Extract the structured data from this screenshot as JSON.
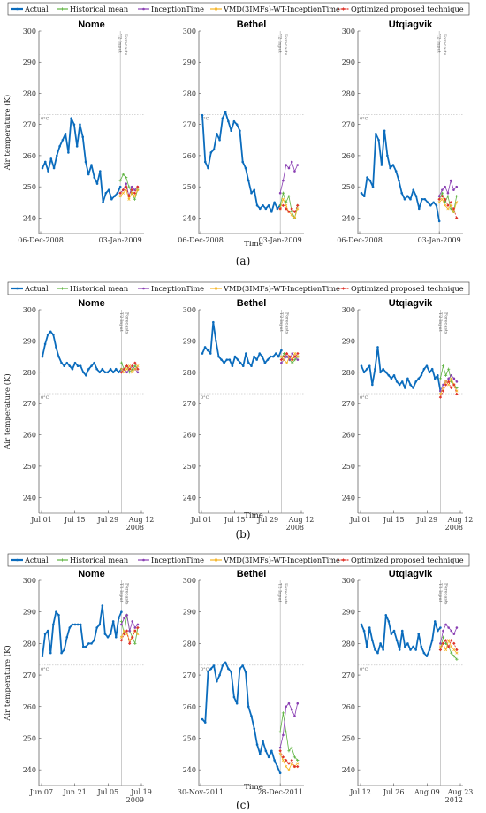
{
  "figure": {
    "ylabel": "Air temperature (K)",
    "xlabel": "Time",
    "freeze_label": "0°C",
    "split_input": "T2 Input",
    "split_forecast": "Forecasts",
    "legend": [
      "Actual",
      "Historical mean",
      "InceptionTime",
      "VMD(3IMFs)-WT-InceptionTime",
      "Optimized proposed technique"
    ],
    "colors": {
      "Actual": "#0b6cbd",
      "Historical mean": "#5db33f",
      "InceptionTime": "#8a3fb3",
      "VMD": "#f5b323",
      "Optimized": "#e0342b"
    }
  },
  "chart_data": [
    {
      "caption": "(a)",
      "type": "line",
      "ylim": [
        235,
        300
      ],
      "yticks": [
        240,
        250,
        260,
        270,
        280,
        290,
        300
      ],
      "xticks_text": [
        "06-Dec-2008",
        "03-Jan-2009"
      ],
      "panels": [
        {
          "title": "Nome",
          "actual": [
            256,
            258,
            255,
            259,
            256,
            260,
            263,
            265,
            267,
            261,
            272,
            270,
            263,
            270,
            266,
            258,
            254,
            257,
            253,
            251,
            255,
            245,
            248,
            249,
            246,
            247,
            248,
            250
          ],
          "hist": [
            252,
            254,
            253,
            250,
            248,
            246,
            249
          ],
          "incep": [
            248,
            249,
            251,
            247,
            250,
            249,
            250
          ],
          "vmd": [
            247,
            248,
            249,
            246,
            248,
            247,
            249
          ],
          "opt": [
            248,
            249,
            250,
            247,
            249,
            248,
            250
          ]
        },
        {
          "title": "Bethel",
          "actual": [
            273,
            258,
            256,
            261,
            262,
            267,
            265,
            272,
            274,
            271,
            268,
            271,
            270,
            268,
            258,
            256,
            252,
            248,
            249,
            244,
            243,
            244,
            243,
            244,
            242,
            245,
            243,
            244
          ],
          "hist": [
            244,
            248,
            245,
            247,
            242,
            240,
            244
          ],
          "incep": [
            248,
            252,
            257,
            256,
            258,
            255,
            257
          ],
          "vmd": [
            243,
            246,
            244,
            242,
            241,
            240,
            243
          ],
          "opt": [
            243,
            244,
            243,
            242,
            243,
            242,
            244
          ]
        },
        {
          "title": "Utqiagvik",
          "actual": [
            248,
            247,
            253,
            252,
            250,
            267,
            265,
            257,
            268,
            260,
            256,
            257,
            255,
            252,
            248,
            246,
            247,
            246,
            249,
            247,
            243,
            246,
            246,
            245,
            244,
            245,
            244,
            239
          ],
          "hist": [
            246,
            248,
            245,
            247,
            243,
            242,
            247
          ],
          "incep": [
            247,
            249,
            250,
            248,
            252,
            249,
            250
          ],
          "vmd": [
            245,
            246,
            244,
            243,
            244,
            242,
            245
          ],
          "opt": [
            246,
            247,
            246,
            244,
            245,
            243,
            240
          ]
        }
      ]
    },
    {
      "caption": "(b)",
      "type": "line",
      "ylim": [
        235,
        300
      ],
      "yticks": [
        240,
        250,
        260,
        270,
        280,
        290,
        300
      ],
      "xticks_text": [
        "Jul 01",
        "Jul 15",
        "Jul 29",
        "Aug 12"
      ],
      "xyear": "2008",
      "panels": [
        {
          "title": "Nome",
          "actual": [
            285,
            289,
            292,
            293,
            292,
            288,
            285,
            283,
            282,
            283,
            282,
            281,
            283,
            282,
            282,
            280,
            279,
            281,
            282,
            283,
            281,
            280,
            281,
            280,
            280,
            281,
            280,
            281,
            280,
            281
          ],
          "hist": [
            283,
            281,
            282,
            280,
            281,
            282,
            281
          ],
          "incep": [
            280,
            281,
            280,
            281,
            282,
            281,
            280
          ],
          "vmd": [
            281,
            280,
            281,
            282,
            280,
            281,
            282
          ],
          "opt": [
            280,
            281,
            282,
            281,
            282,
            283,
            281
          ]
        },
        {
          "title": "Bethel",
          "actual": [
            286,
            288,
            287,
            286,
            296,
            290,
            285,
            284,
            283,
            284,
            284,
            282,
            285,
            284,
            283,
            282,
            286,
            283,
            282,
            285,
            284,
            286,
            285,
            283,
            284,
            285,
            285,
            286,
            285,
            287
          ],
          "hist": [
            284,
            286,
            285,
            284,
            283,
            284,
            285
          ],
          "incep": [
            283,
            284,
            285,
            284,
            286,
            285,
            284
          ],
          "vmd": [
            285,
            284,
            283,
            285,
            284,
            286,
            285
          ],
          "opt": [
            284,
            285,
            286,
            285,
            284,
            285,
            286
          ]
        },
        {
          "title": "Utqiagvik",
          "actual": [
            282,
            280,
            281,
            282,
            276,
            281,
            288,
            280,
            281,
            280,
            279,
            278,
            279,
            277,
            276,
            277,
            275,
            278,
            276,
            275,
            277,
            278,
            279,
            281,
            282,
            280,
            281,
            278,
            279,
            274
          ],
          "hist": [
            278,
            282,
            279,
            281,
            277,
            276,
            275
          ],
          "incep": [
            274,
            276,
            277,
            278,
            279,
            278,
            277
          ],
          "vmd": [
            273,
            275,
            277,
            276,
            278,
            276,
            274
          ],
          "opt": [
            272,
            274,
            276,
            277,
            275,
            276,
            273
          ]
        }
      ]
    },
    {
      "caption": "(c)",
      "type": "line",
      "ylim": [
        235,
        300
      ],
      "yticks": [
        240,
        250,
        260,
        270,
        280,
        290,
        300
      ],
      "panels": [
        {
          "title": "Nome",
          "xticks_text": [
            "Jun 07",
            "Jun 21",
            "Jul 05",
            "Jul 19"
          ],
          "xyear": "2009",
          "actual": [
            276,
            283,
            284,
            277,
            286,
            290,
            289,
            277,
            278,
            282,
            285,
            286,
            286,
            286,
            286,
            279,
            279,
            280,
            280,
            281,
            285,
            286,
            292,
            283,
            282,
            283,
            287,
            282,
            288,
            290
          ],
          "hist": [
            287,
            283,
            289,
            284,
            282,
            280,
            285
          ],
          "incep": [
            286,
            288,
            289,
            284,
            287,
            285,
            286
          ],
          "vmd": [
            282,
            284,
            283,
            281,
            282,
            284,
            283
          ],
          "opt": [
            281,
            283,
            284,
            280,
            282,
            284,
            285
          ]
        },
        {
          "title": "Bethel",
          "xticks_text": [
            "30-Nov-2011",
            "28-Dec-2011"
          ],
          "actual": [
            256,
            255,
            271,
            272,
            273,
            268,
            270,
            273,
            274,
            272,
            271,
            263,
            261,
            272,
            273,
            271,
            260,
            257,
            253,
            248,
            245,
            249,
            246,
            244,
            246,
            243,
            241,
            239
          ],
          "hist": [
            252,
            258,
            252,
            246,
            247,
            244,
            243
          ],
          "incep": [
            247,
            251,
            260,
            261,
            259,
            257,
            261
          ],
          "vmd": [
            245,
            243,
            241,
            240,
            242,
            241,
            242
          ],
          "opt": [
            246,
            244,
            243,
            242,
            243,
            241,
            241
          ]
        },
        {
          "title": "Utqiagvik",
          "xticks_text": [
            "Jul 12",
            "Jul 26",
            "Aug 09",
            "Aug 23"
          ],
          "xyear": "2012",
          "actual": [
            286,
            284,
            279,
            285,
            281,
            278,
            277,
            280,
            278,
            289,
            287,
            283,
            284,
            281,
            278,
            284,
            279,
            280,
            278,
            279,
            278,
            283,
            279,
            277,
            276,
            278,
            281,
            287,
            284,
            285
          ],
          "hist": [
            278,
            282,
            280,
            279,
            277,
            276,
            275
          ],
          "incep": [
            280,
            284,
            286,
            285,
            284,
            283,
            285
          ],
          "vmd": [
            279,
            280,
            278,
            281,
            279,
            278,
            277
          ],
          "opt": [
            278,
            280,
            281,
            279,
            281,
            280,
            278
          ]
        }
      ]
    }
  ]
}
